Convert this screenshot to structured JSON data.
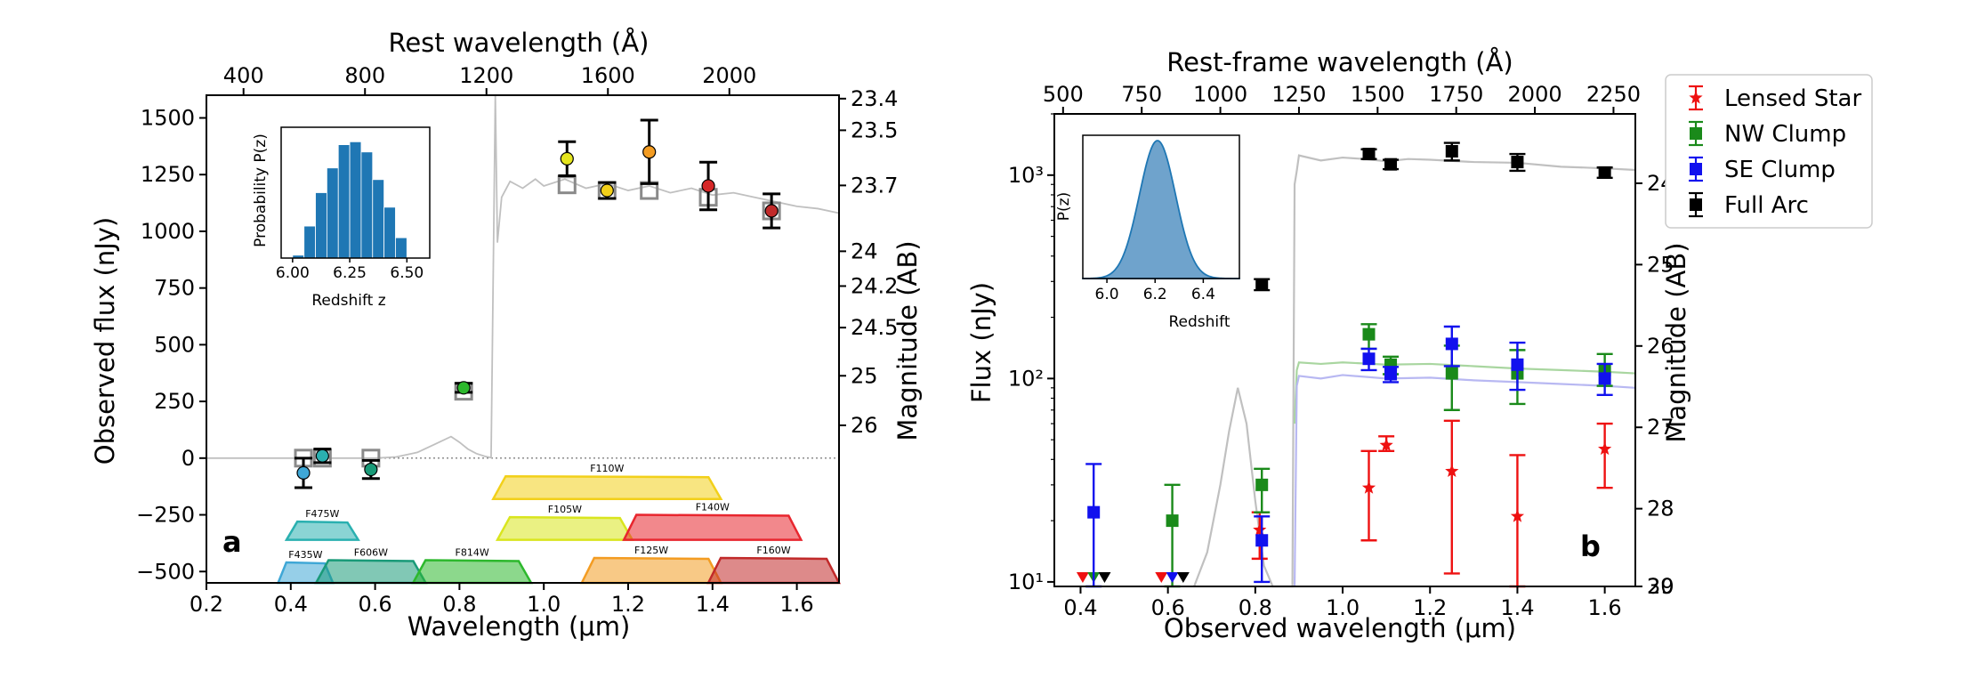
{
  "colors": {
    "axis": "#000000",
    "model_line": "#c0c0c0",
    "hist_bar": "#1f77b4",
    "kde_fill": "#6fa3cc",
    "lensed_star": "#ee1111",
    "nw_clump": "#1a8a1a",
    "se_clump": "#1111ee",
    "full_arc": "#000000",
    "model_box": "#8a8a8a"
  },
  "chart_data": [
    {
      "panel": "a",
      "type": "scatter",
      "panel_label": "a",
      "xlabel": "Wavelength (μm)",
      "ylabel": "Observed flux (nJy)",
      "top_xlabel": "Rest wavelength (Å)",
      "right_ylabel": "Magnitude (AB)",
      "xlim": [
        0.2,
        1.7
      ],
      "ylim": [
        -550,
        1600
      ],
      "xticks": [
        "0.2",
        "0.4",
        "0.6",
        "0.8",
        "1.0",
        "1.2",
        "1.4",
        "1.6"
      ],
      "yticks": [
        "−500",
        "−250",
        "0",
        "250",
        "500",
        "750",
        "1000",
        "1250",
        "1500"
      ],
      "top_ticks": [
        "400",
        "800",
        "1200",
        "1600",
        "2000"
      ],
      "right_ticks": [
        "23.4",
        "23.5",
        "23.7",
        "24",
        "24.2",
        "24.5",
        "25",
        "26"
      ],
      "redshift": 6.2,
      "zero_line": 0,
      "model_spectrum": {
        "x": [
          0.2,
          0.45,
          0.6,
          0.65,
          0.7,
          0.74,
          0.78,
          0.8,
          0.82,
          0.84,
          0.86,
          0.875,
          0.885,
          0.89,
          0.9,
          0.92,
          0.95,
          0.98,
          1.0,
          1.05,
          1.1,
          1.15,
          1.2,
          1.25,
          1.3,
          1.35,
          1.4,
          1.45,
          1.5,
          1.55,
          1.6,
          1.65,
          1.7
        ],
        "flux": [
          0,
          0,
          0,
          5,
          25,
          60,
          95,
          70,
          40,
          20,
          8,
          2,
          1600,
          950,
          1150,
          1220,
          1190,
          1230,
          1200,
          1230,
          1190,
          1210,
          1180,
          1200,
          1170,
          1190,
          1160,
          1170,
          1150,
          1130,
          1110,
          1100,
          1080
        ]
      },
      "measurements": [
        {
          "x": 0.43,
          "flux": -65,
          "err": 65,
          "color": "#3fa7d6"
        },
        {
          "x": 0.475,
          "flux": 10,
          "err": 30,
          "color": "#2ab0b0"
        },
        {
          "x": 0.59,
          "flux": -50,
          "err": 40,
          "color": "#199a78"
        },
        {
          "x": 0.81,
          "flux": 310,
          "err": 20,
          "color": "#2db82d"
        },
        {
          "x": 1.055,
          "flux": 1320,
          "err": 75,
          "color": "#e5e51e"
        },
        {
          "x": 1.15,
          "flux": 1180,
          "err": 35,
          "color": "#f2d01a"
        },
        {
          "x": 1.25,
          "flux": 1350,
          "err": 140,
          "color": "#f39c22"
        },
        {
          "x": 1.39,
          "flux": 1200,
          "err": 105,
          "color": "#d62728"
        },
        {
          "x": 1.54,
          "flux": 1090,
          "err": 75,
          "color": "#c12a2a"
        }
      ],
      "model_points": [
        {
          "x": 0.43,
          "flux": 0
        },
        {
          "x": 0.475,
          "flux": 0
        },
        {
          "x": 0.59,
          "flux": 0
        },
        {
          "x": 0.81,
          "flux": 295
        },
        {
          "x": 1.055,
          "flux": 1205
        },
        {
          "x": 1.15,
          "flux": 1180
        },
        {
          "x": 1.25,
          "flux": 1180
        },
        {
          "x": 1.39,
          "flux": 1150
        },
        {
          "x": 1.54,
          "flux": 1090
        }
      ],
      "filters": [
        {
          "name": "F435W",
          "x0": 0.37,
          "x1": 0.5,
          "base": -550,
          "top": -460,
          "color": "#3fa7d6"
        },
        {
          "name": "F475W",
          "x0": 0.39,
          "x1": 0.56,
          "base": -360,
          "top": -280,
          "color": "#2ab0b0"
        },
        {
          "name": "F606W",
          "x0": 0.46,
          "x1": 0.72,
          "base": -550,
          "top": -450,
          "color": "#199a78"
        },
        {
          "name": "F814W",
          "x0": 0.69,
          "x1": 0.97,
          "base": -550,
          "top": -450,
          "color": "#2db82d"
        },
        {
          "name": "F110W",
          "x0": 0.88,
          "x1": 1.42,
          "base": -180,
          "top": -80,
          "color": "#f2d01a"
        },
        {
          "name": "F105W",
          "x0": 0.89,
          "x1": 1.21,
          "base": -360,
          "top": -260,
          "color": "#d9e51e"
        },
        {
          "name": "F140W",
          "x0": 1.19,
          "x1": 1.61,
          "base": -360,
          "top": -250,
          "color": "#e8262e"
        },
        {
          "name": "F125W",
          "x0": 1.09,
          "x1": 1.42,
          "base": -550,
          "top": -440,
          "color": "#f39c22"
        },
        {
          "name": "F160W",
          "x0": 1.39,
          "x1": 1.7,
          "base": -550,
          "top": -440,
          "color": "#c12a2a"
        }
      ],
      "inset": {
        "type": "bar",
        "xlabel": "Redshift z",
        "ylabel": "Probability P(z)",
        "xticks": [
          "6.00",
          "6.25",
          "6.50"
        ],
        "xlim": [
          5.95,
          6.6
        ],
        "bins": [
          6.0,
          6.05,
          6.1,
          6.15,
          6.2,
          6.25,
          6.3,
          6.35,
          6.4,
          6.45,
          6.5
        ],
        "values": [
          0.02,
          0.22,
          0.45,
          0.62,
          0.78,
          0.8,
          0.73,
          0.54,
          0.35,
          0.14,
          0.0
        ]
      }
    },
    {
      "panel": "b",
      "type": "scatter",
      "panel_label": "b",
      "xlabel": "Observed wavelength (μm)",
      "ylabel": "Flux (nJy)",
      "top_xlabel": "Rest-frame wavelength (Å)",
      "right_ylabel": "Magnitude (AB)",
      "xscale": "linear",
      "yscale": "log",
      "xlim": [
        0.34,
        1.67
      ],
      "ylim": [
        9.5,
        2000
      ],
      "xticks": [
        "0.4",
        "0.6",
        "0.8",
        "1.0",
        "1.2",
        "1.4",
        "1.6"
      ],
      "yticks": [
        "10¹",
        "10²",
        "10³"
      ],
      "top_ticks": [
        "500",
        "750",
        "1000",
        "1250",
        "1500",
        "1750",
        "2000",
        "2250"
      ],
      "right_ticks": [
        "24",
        "25",
        "26",
        "27",
        "28",
        "29",
        "30"
      ],
      "legend": {
        "placement": "outside-right",
        "entries": [
          "Lensed Star",
          "NW Clump",
          "SE Clump",
          "Full Arc"
        ]
      },
      "series": [
        {
          "name": "Lensed Star",
          "marker": "star",
          "color": "#ee1111",
          "points": [
            {
              "x": 0.81,
              "y": 18,
              "lo": 13,
              "hi": 22
            },
            {
              "x": 1.06,
              "y": 29,
              "lo": 16,
              "hi": 44
            },
            {
              "x": 1.1,
              "y": 47,
              "lo": 44,
              "hi": 52
            },
            {
              "x": 1.25,
              "y": 35,
              "lo": 11,
              "hi": 62
            },
            {
              "x": 1.4,
              "y": 21,
              "lo": 9.5,
              "hi": 42
            },
            {
              "x": 1.6,
              "y": 45,
              "lo": 29,
              "hi": 60
            }
          ],
          "upper_limits": [
            {
              "x": 0.405
            },
            {
              "x": 0.585
            }
          ]
        },
        {
          "name": "NW Clump",
          "marker": "square",
          "color": "#1a8a1a",
          "points": [
            {
              "x": 0.61,
              "y": 20,
              "lo": 9.5,
              "hi": 30
            },
            {
              "x": 0.815,
              "y": 30,
              "lo": 22,
              "hi": 36
            },
            {
              "x": 1.06,
              "y": 165,
              "lo": 140,
              "hi": 185
            },
            {
              "x": 1.11,
              "y": 117,
              "lo": 105,
              "hi": 128
            },
            {
              "x": 1.25,
              "y": 106,
              "lo": 70,
              "hi": 145
            },
            {
              "x": 1.4,
              "y": 106,
              "lo": 75,
              "hi": 138
            },
            {
              "x": 1.6,
              "y": 110,
              "lo": 92,
              "hi": 132
            }
          ],
          "upper_limits": [
            {
              "x": 0.43
            }
          ]
        },
        {
          "name": "SE Clump",
          "marker": "square",
          "color": "#1111ee",
          "points": [
            {
              "x": 0.43,
              "y": 22,
              "lo": 9.5,
              "hi": 38
            },
            {
              "x": 0.815,
              "y": 16,
              "lo": 10,
              "hi": 21
            },
            {
              "x": 1.06,
              "y": 125,
              "lo": 110,
              "hi": 140
            },
            {
              "x": 1.11,
              "y": 105,
              "lo": 96,
              "hi": 114
            },
            {
              "x": 1.25,
              "y": 148,
              "lo": 115,
              "hi": 180
            },
            {
              "x": 1.4,
              "y": 117,
              "lo": 88,
              "hi": 150
            },
            {
              "x": 1.6,
              "y": 100,
              "lo": 83,
              "hi": 118
            }
          ],
          "upper_limits": [
            {
              "x": 0.61
            }
          ]
        },
        {
          "name": "Full Arc",
          "marker": "square",
          "color": "#000000",
          "points": [
            {
              "x": 0.815,
              "y": 290,
              "lo": 272,
              "hi": 308
            },
            {
              "x": 1.06,
              "y": 1270,
              "lo": 1200,
              "hi": 1340
            },
            {
              "x": 1.11,
              "y": 1130,
              "lo": 1070,
              "hi": 1190
            },
            {
              "x": 1.25,
              "y": 1310,
              "lo": 1180,
              "hi": 1440
            },
            {
              "x": 1.4,
              "y": 1160,
              "lo": 1050,
              "hi": 1270
            },
            {
              "x": 1.6,
              "y": 1030,
              "lo": 970,
              "hi": 1090
            }
          ],
          "upper_limits": [
            {
              "x": 0.455
            },
            {
              "x": 0.635
            }
          ]
        }
      ],
      "model_curves": [
        {
          "name": "Full Arc model",
          "color": "#c0c0c0",
          "x": [
            0.66,
            0.69,
            0.72,
            0.74,
            0.76,
            0.78,
            0.8,
            0.82,
            0.84,
            0.86,
            0.875,
            0.885,
            0.89,
            0.895,
            0.9,
            0.95,
            1.0,
            1.05,
            1.1,
            1.15,
            1.2,
            1.3,
            1.4,
            1.5,
            1.6,
            1.67
          ],
          "y": [
            9.5,
            14,
            30,
            55,
            90,
            60,
            25,
            12,
            9.5,
            9.5,
            9.5,
            9.5,
            900,
            1050,
            1250,
            1180,
            1220,
            1200,
            1170,
            1200,
            1190,
            1160,
            1150,
            1100,
            1080,
            1060
          ]
        },
        {
          "name": "NW Clump model",
          "color": "#a9d6a0",
          "x": [
            0.89,
            0.895,
            0.9,
            0.95,
            1.0,
            1.1,
            1.2,
            1.3,
            1.4,
            1.5,
            1.6,
            1.67
          ],
          "y": [
            60,
            110,
            120,
            118,
            120,
            117,
            118,
            115,
            112,
            110,
            108,
            106
          ]
        },
        {
          "name": "SE Clump model",
          "color": "#b8b8f2",
          "x": [
            0.89,
            0.895,
            0.9,
            0.95,
            1.0,
            1.1,
            1.2,
            1.3,
            1.4,
            1.5,
            1.6,
            1.67
          ],
          "y": [
            9.5,
            92,
            103,
            100,
            104,
            100,
            101,
            98,
            96,
            94,
            92,
            90
          ]
        }
      ],
      "inset": {
        "type": "area",
        "xlabel": "Redshift",
        "ylabel": "P(z)",
        "xticks": [
          "6.0",
          "6.2",
          "6.4"
        ],
        "xlim": [
          5.9,
          6.55
        ],
        "mean": 6.21,
        "sigma": 0.075
      }
    }
  ]
}
